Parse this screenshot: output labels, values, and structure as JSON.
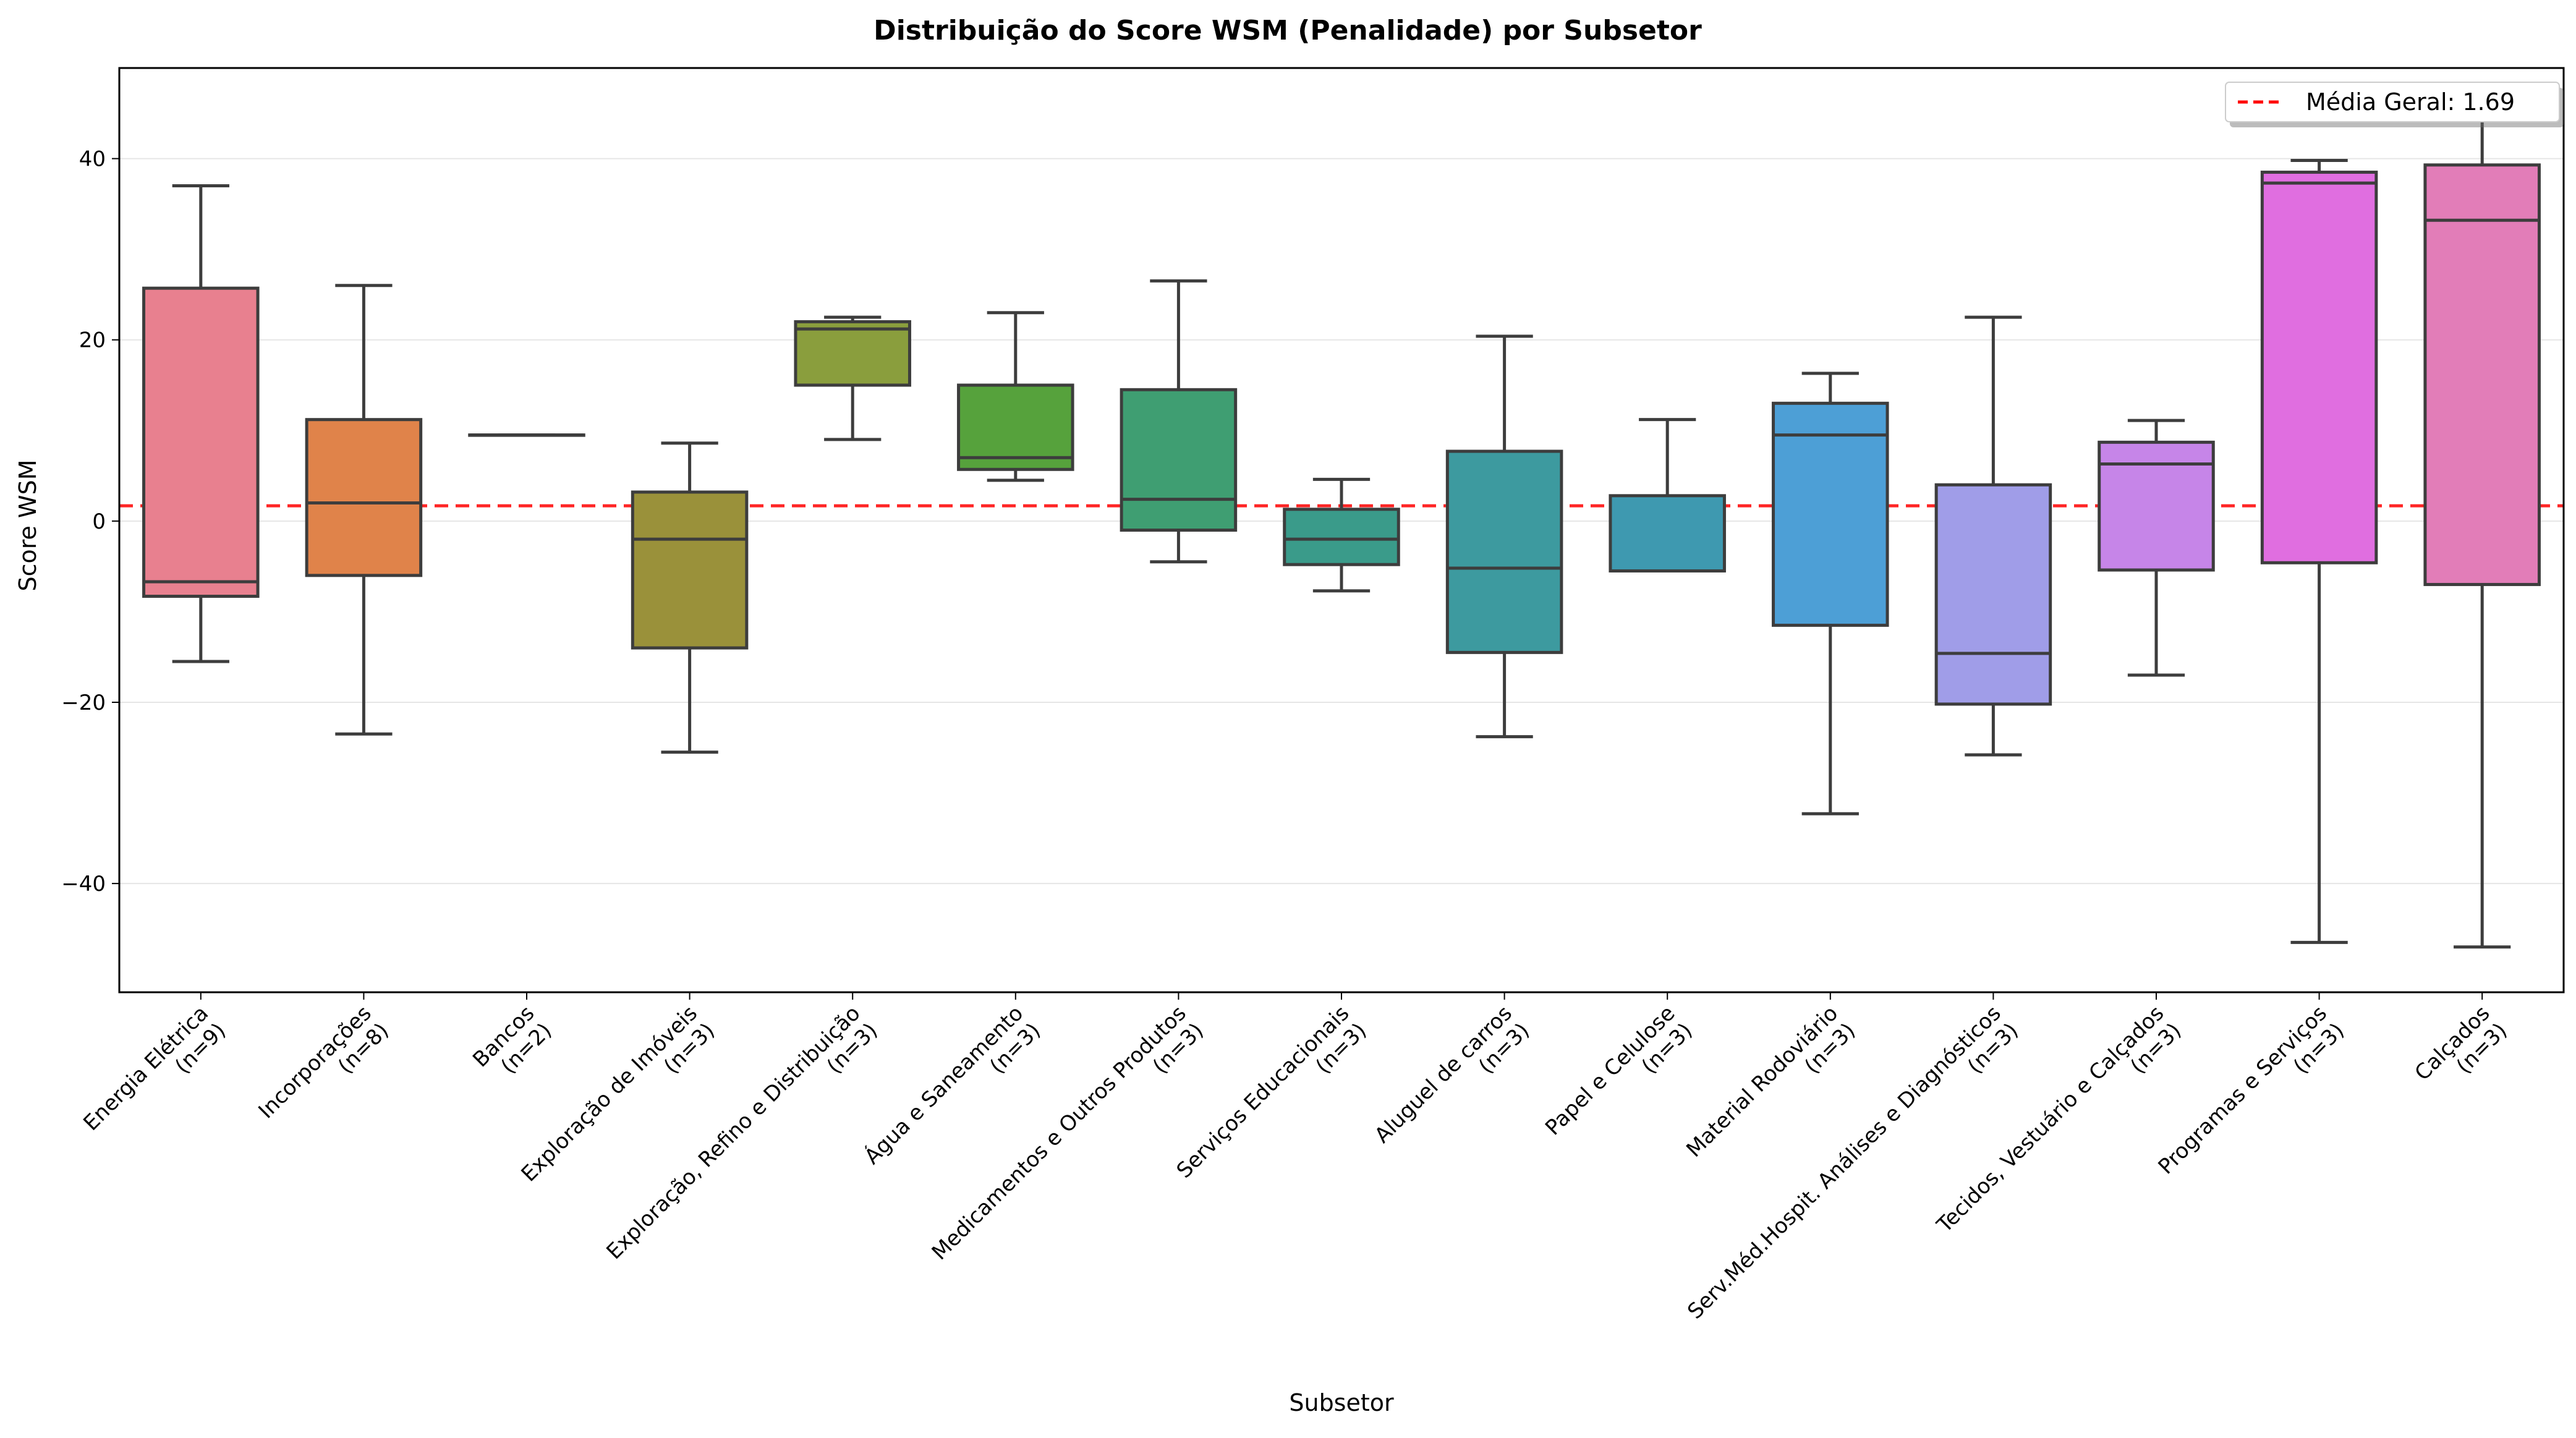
{
  "chart_data": {
    "type": "box",
    "title": "Distribuição do Score WSM (Penalidade) por Subsetor",
    "xlabel": "Subsetor",
    "ylabel": "Score WSM",
    "ylim": [
      -52,
      50
    ],
    "yticks": [
      -40,
      -20,
      0,
      20,
      40
    ],
    "ytick_labels": [
      "−40",
      "−20",
      "0",
      "20",
      "40"
    ],
    "grid": "horizontal",
    "legend": {
      "placement": "top-right",
      "entries": [
        {
          "label": "Média Geral: 1.69",
          "style": "dashed",
          "color": "#ff0000"
        }
      ]
    },
    "reference_line": {
      "value": 1.69,
      "color": "#ff0000",
      "style": "dashed"
    },
    "categories": [
      {
        "name": "Energia Elétrica",
        "n_label": "(n=9)",
        "color": "#e8808f",
        "whisker_low": -15.5,
        "q1": -8.3,
        "median": -6.7,
        "q3": 25.7,
        "whisker_high": 37.0
      },
      {
        "name": "Incorporações",
        "n_label": "(n=8)",
        "color": "#e0834a",
        "whisker_low": -23.5,
        "q1": -6.0,
        "median": 2.0,
        "q3": 11.2,
        "whisker_high": 26.0
      },
      {
        "name": "Bancos",
        "n_label": "(n=2)",
        "color": "#c49d3f",
        "whisker_low": 9.5,
        "q1": 9.5,
        "median": 9.5,
        "q3": 9.5,
        "whisker_high": 9.5
      },
      {
        "name": "Exploração de Imóveis",
        "n_label": "(n=3)",
        "color": "#9a913a",
        "whisker_low": -25.5,
        "q1": -14.0,
        "median": -2.0,
        "q3": 3.2,
        "whisker_high": 8.6
      },
      {
        "name": "Exploração, Refino e Distribuição",
        "n_label": "(n=3)",
        "color": "#8a9e3d",
        "whisker_low": 9.0,
        "q1": 15.0,
        "median": 21.2,
        "q3": 22.0,
        "whisker_high": 22.5
      },
      {
        "name": "Água e Saneamento",
        "n_label": "(n=3)",
        "color": "#56a23c",
        "whisker_low": 4.5,
        "q1": 5.7,
        "median": 7.0,
        "q3": 15.0,
        "whisker_high": 23.0
      },
      {
        "name": "Medicamentos e Outros Produtos",
        "n_label": "(n=3)",
        "color": "#3f9e72",
        "whisker_low": -4.5,
        "q1": -1.0,
        "median": 2.4,
        "q3": 14.5,
        "whisker_high": 26.5
      },
      {
        "name": "Serviços Educacionais",
        "n_label": "(n=3)",
        "color": "#3a9b8a",
        "whisker_low": -7.7,
        "q1": -4.8,
        "median": -2.0,
        "q3": 1.3,
        "whisker_high": 4.6
      },
      {
        "name": "Aluguel de carros",
        "n_label": "(n=3)",
        "color": "#3d9a9f",
        "whisker_low": -23.8,
        "q1": -14.5,
        "median": -5.2,
        "q3": 7.7,
        "whisker_high": 20.4
      },
      {
        "name": "Papel e Celulose",
        "n_label": "(n=3)",
        "color": "#3e99b0",
        "whisker_low": -5.5,
        "q1": -5.5,
        "median": -5.5,
        "q3": 2.8,
        "whisker_high": 11.2
      },
      {
        "name": "Material Rodoviário",
        "n_label": "(n=3)",
        "color": "#4d9fd6",
        "whisker_low": -32.3,
        "q1": -11.5,
        "median": 9.5,
        "q3": 13.0,
        "whisker_high": 16.3
      },
      {
        "name": "Serv.Méd.Hospit. Análises e Diagnósticos",
        "n_label": "(n=3)",
        "color": "#a09de8",
        "whisker_low": -25.8,
        "q1": -20.2,
        "median": -14.6,
        "q3": 4.0,
        "whisker_high": 22.5
      },
      {
        "name": "Tecidos, Vestuário e Calçados",
        "n_label": "(n=3)",
        "color": "#c685e8",
        "whisker_low": -17.0,
        "q1": -5.4,
        "median": 6.3,
        "q3": 8.7,
        "whisker_high": 11.1
      },
      {
        "name": "Programas e Serviços",
        "n_label": "(n=3)",
        "color": "#e06ee0",
        "whisker_low": -46.5,
        "q1": -4.6,
        "median": 37.3,
        "q3": 38.5,
        "whisker_high": 39.8
      },
      {
        "name": "Calçados",
        "n_label": "(n=3)",
        "color": "#e27db8",
        "whisker_low": -47.0,
        "q1": -7.0,
        "median": 33.2,
        "q3": 39.3,
        "whisker_high": 45.4
      }
    ]
  }
}
